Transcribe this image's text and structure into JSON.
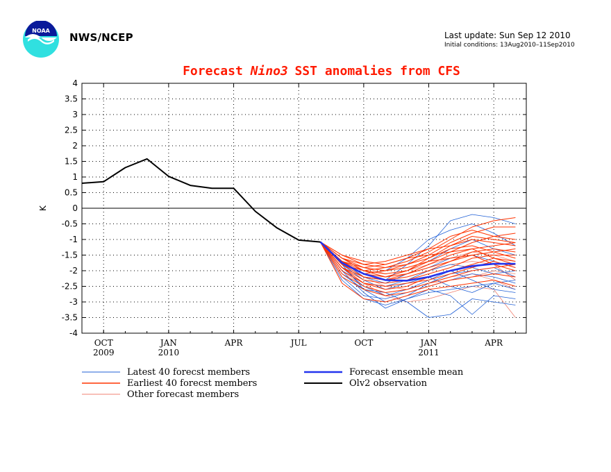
{
  "header": {
    "agency": "NWS/NCEP",
    "last_update": "Last update: Sun Sep 12 2010",
    "initial_conditions": "Initial conditions: 13Aug2010–11Sep2010",
    "logo_text": "NOAA"
  },
  "colors": {
    "title": "#ff1a00",
    "latest": "#1f5fd6",
    "earliest": "#ff3300",
    "other": "#f08070",
    "mean": "#2233ee",
    "observation": "#000000"
  },
  "chart_data": {
    "type": "line",
    "title_parts": [
      "Forecast ",
      "Nino3",
      "  SST anomalies from CFS"
    ],
    "ylabel": "K",
    "xlabel": "",
    "ylim": [
      -4,
      4
    ],
    "yticks": [
      4,
      3.5,
      3,
      2.5,
      2,
      1.5,
      1,
      0.5,
      0,
      -0.5,
      -1,
      -1.5,
      -2,
      -2.5,
      -3,
      -3.5,
      -4
    ],
    "ytick_labels": [
      "4",
      "3.5",
      "3",
      "2.5",
      "2",
      "1.5",
      "1",
      "0.5",
      "0",
      "-0.5",
      "-1",
      "-1.5",
      "-2",
      "-2.5",
      "-3",
      "-3.5",
      "-4"
    ],
    "x_months_range": [
      0,
      20.5
    ],
    "xticks": [
      {
        "m": 1,
        "label": "OCT",
        "year": "2009"
      },
      {
        "m": 4,
        "label": "JAN",
        "year": "2010"
      },
      {
        "m": 7,
        "label": "APR",
        "year": ""
      },
      {
        "m": 10,
        "label": "JUL",
        "year": ""
      },
      {
        "m": 13,
        "label": "OCT",
        "year": ""
      },
      {
        "m": 16,
        "label": "JAN",
        "year": "2011"
      },
      {
        "m": 19,
        "label": "APR",
        "year": ""
      }
    ],
    "x_axis_note": "month index 0 = Sep 2009",
    "grid": true,
    "series": [
      {
        "name": "Olv2 observation",
        "x": [
          0,
          1,
          2,
          3,
          4,
          5,
          6,
          7,
          8,
          9,
          10,
          11
        ],
        "values": [
          0.8,
          0.85,
          1.3,
          1.58,
          1.02,
          0.73,
          0.64,
          0.64,
          -0.1,
          -0.63,
          -1.02,
          -1.08
        ]
      },
      {
        "name": "Forecast ensemble mean",
        "x": [
          11,
          12,
          13,
          14,
          15,
          16,
          17,
          18,
          19,
          20
        ],
        "values": [
          -1.08,
          -1.75,
          -2.1,
          -2.3,
          -2.32,
          -2.2,
          -2.0,
          -1.85,
          -1.78,
          -1.78
        ]
      }
    ],
    "ensemble_members": [
      {
        "group": "latest",
        "values": [
          -1.08,
          -2.1,
          -2.6,
          -2.7,
          -3.0,
          -3.5,
          -3.4,
          -2.9,
          -3.0,
          -3.1
        ]
      },
      {
        "group": "latest",
        "values": [
          -1.08,
          -2.0,
          -2.7,
          -3.2,
          -2.9,
          -2.6,
          -2.8,
          -3.4,
          -2.8,
          -2.9
        ]
      },
      {
        "group": "latest",
        "values": [
          -1.08,
          -1.8,
          -2.3,
          -2.6,
          -2.4,
          -2.2,
          -2.5,
          -2.7,
          -2.4,
          -2.3
        ]
      },
      {
        "group": "latest",
        "values": [
          -1.08,
          -1.6,
          -2.0,
          -2.2,
          -2.0,
          -1.7,
          -1.3,
          -1.0,
          -1.3,
          -1.5
        ]
      },
      {
        "group": "latest",
        "values": [
          -1.08,
          -1.9,
          -2.2,
          -2.3,
          -1.8,
          -1.2,
          -0.4,
          -0.2,
          -0.3,
          -0.5
        ]
      },
      {
        "group": "latest",
        "values": [
          -1.08,
          -1.7,
          -2.1,
          -2.0,
          -1.6,
          -1.0,
          -0.7,
          -0.5,
          -0.8,
          -1.2
        ]
      },
      {
        "group": "latest",
        "values": [
          -1.08,
          -2.2,
          -2.8,
          -2.9,
          -2.7,
          -2.5,
          -2.3,
          -2.1,
          -2.2,
          -2.4
        ]
      },
      {
        "group": "latest",
        "values": [
          -1.08,
          -1.9,
          -2.5,
          -2.8,
          -2.6,
          -2.3,
          -2.0,
          -2.3,
          -2.6,
          -2.7
        ]
      },
      {
        "group": "latest",
        "values": [
          -1.08,
          -2.0,
          -2.4,
          -2.5,
          -2.3,
          -2.0,
          -1.8,
          -1.9,
          -2.1,
          -2.0
        ]
      },
      {
        "group": "latest",
        "values": [
          -1.08,
          -1.8,
          -2.6,
          -3.0,
          -2.8,
          -2.4,
          -2.1,
          -2.0,
          -1.9,
          -2.2
        ]
      },
      {
        "group": "latest",
        "values": [
          -1.08,
          -2.3,
          -2.9,
          -3.1,
          -2.9,
          -2.7,
          -2.6,
          -2.5,
          -2.4,
          -2.6
        ]
      },
      {
        "group": "latest",
        "values": [
          -1.08,
          -1.7,
          -2.2,
          -2.4,
          -2.1,
          -1.9,
          -1.6,
          -1.5,
          -1.7,
          -1.9
        ]
      },
      {
        "group": "earliest",
        "values": [
          -1.08,
          -1.5,
          -1.8,
          -1.9,
          -1.7,
          -1.4,
          -1.0,
          -0.6,
          -0.4,
          -0.3
        ]
      },
      {
        "group": "earliest",
        "values": [
          -1.08,
          -1.6,
          -1.9,
          -2.0,
          -1.8,
          -1.5,
          -1.1,
          -0.8,
          -0.6,
          -0.6
        ]
      },
      {
        "group": "earliest",
        "values": [
          -1.08,
          -1.7,
          -2.0,
          -2.1,
          -2.0,
          -1.7,
          -1.4,
          -1.1,
          -0.9,
          -0.8
        ]
      },
      {
        "group": "earliest",
        "values": [
          -1.08,
          -1.5,
          -1.7,
          -1.8,
          -1.6,
          -1.3,
          -1.2,
          -1.0,
          -1.1,
          -1.2
        ]
      },
      {
        "group": "earliest",
        "values": [
          -1.08,
          -1.8,
          -2.2,
          -2.3,
          -2.2,
          -2.0,
          -1.7,
          -1.4,
          -1.3,
          -1.4
        ]
      },
      {
        "group": "earliest",
        "values": [
          -1.08,
          -1.9,
          -2.3,
          -2.4,
          -2.3,
          -2.1,
          -1.9,
          -1.6,
          -1.5,
          -1.5
        ]
      },
      {
        "group": "earliest",
        "values": [
          -1.08,
          -1.6,
          -2.0,
          -2.2,
          -2.1,
          -1.8,
          -1.5,
          -1.3,
          -1.2,
          -1.1
        ]
      },
      {
        "group": "earliest",
        "values": [
          -1.08,
          -2.0,
          -2.4,
          -2.6,
          -2.5,
          -2.2,
          -2.0,
          -1.8,
          -1.6,
          -1.7
        ]
      },
      {
        "group": "earliest",
        "values": [
          -1.08,
          -1.7,
          -2.1,
          -2.2,
          -2.0,
          -1.6,
          -1.3,
          -1.2,
          -1.4,
          -1.6
        ]
      },
      {
        "group": "earliest",
        "values": [
          -1.08,
          -1.8,
          -2.1,
          -2.0,
          -1.9,
          -1.7,
          -1.6,
          -1.5,
          -1.4,
          -1.3
        ]
      },
      {
        "group": "earliest",
        "values": [
          -1.08,
          -1.9,
          -2.2,
          -2.3,
          -2.1,
          -1.9,
          -1.7,
          -1.5,
          -1.8,
          -2.0
        ]
      },
      {
        "group": "earliest",
        "values": [
          -1.08,
          -2.1,
          -2.5,
          -2.7,
          -2.6,
          -2.4,
          -2.2,
          -2.0,
          -1.9,
          -1.8
        ]
      },
      {
        "group": "earliest",
        "values": [
          -1.08,
          -2.2,
          -2.6,
          -2.8,
          -2.7,
          -2.5,
          -2.3,
          -2.2,
          -2.1,
          -2.2
        ]
      },
      {
        "group": "earliest",
        "values": [
          -1.08,
          -1.6,
          -1.8,
          -1.7,
          -1.5,
          -1.3,
          -0.9,
          -0.7,
          -0.9,
          -1.0
        ]
      },
      {
        "group": "earliest",
        "values": [
          -1.08,
          -1.7,
          -1.9,
          -1.8,
          -1.6,
          -1.5,
          -1.4,
          -1.3,
          -1.6,
          -1.8
        ]
      },
      {
        "group": "earliest",
        "values": [
          -1.08,
          -1.9,
          -2.4,
          -2.5,
          -2.4,
          -2.3,
          -2.1,
          -1.9,
          -1.7,
          -1.9
        ]
      },
      {
        "group": "earliest",
        "values": [
          -1.08,
          -2.4,
          -2.9,
          -3.0,
          -2.8,
          -2.6,
          -2.5,
          -2.4,
          -2.3,
          -2.5
        ]
      },
      {
        "group": "earliest",
        "values": [
          -1.08,
          -1.8,
          -2.0,
          -1.9,
          -1.8,
          -1.6,
          -1.2,
          -0.9,
          -1.0,
          -1.1
        ]
      },
      {
        "group": "other",
        "values": [
          -1.08,
          -1.9,
          -2.4,
          -2.8,
          -3.0,
          -2.9,
          -2.7,
          -2.5,
          -2.6,
          -3.5
        ]
      },
      {
        "group": "other",
        "values": [
          -1.08,
          -1.7,
          -2.2,
          -2.5,
          -2.6,
          -2.4,
          -2.2,
          -2.1,
          -2.3,
          -2.6
        ]
      },
      {
        "group": "other",
        "values": [
          -1.08,
          -2.0,
          -2.5,
          -2.7,
          -2.6,
          -2.4,
          -2.3,
          -2.2,
          -2.0,
          -2.1
        ]
      },
      {
        "group": "other",
        "values": [
          -1.08,
          -1.8,
          -2.1,
          -2.3,
          -2.2,
          -2.0,
          -1.8,
          -1.7,
          -1.8,
          -2.3
        ]
      },
      {
        "group": "other",
        "values": [
          -1.08,
          -1.6,
          -1.9,
          -2.1,
          -2.0,
          -1.8,
          -1.6,
          -1.4,
          -1.5,
          -1.7
        ]
      }
    ],
    "legend": [
      {
        "label": "Latest 40 forecst members",
        "group": "latest"
      },
      {
        "label": "Earliest 40 forecst members",
        "group": "earliest"
      },
      {
        "label": "Other forecast members",
        "group": "other"
      },
      {
        "label": "Forecast ensemble mean",
        "group": "mean"
      },
      {
        "label": "Olv2 observation",
        "group": "observation"
      }
    ],
    "legend_placement": "bottom"
  }
}
